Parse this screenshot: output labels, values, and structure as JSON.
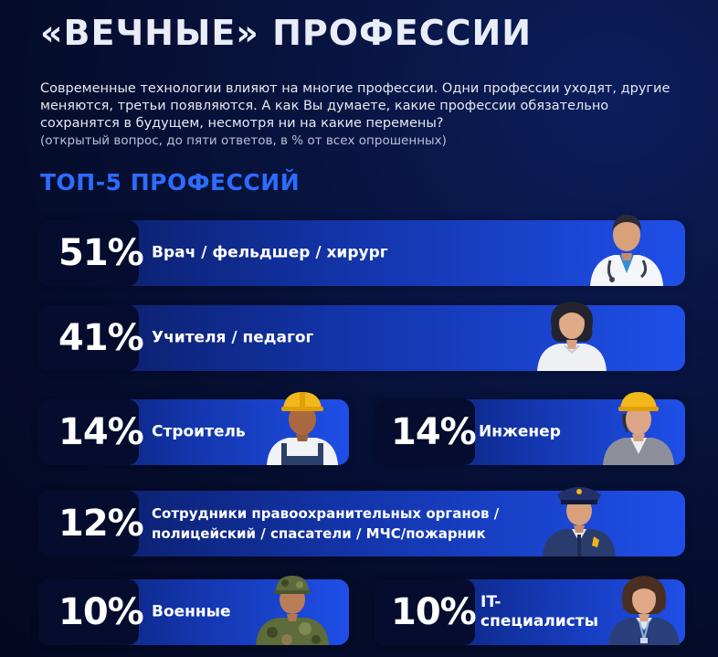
{
  "title": "«ВЕЧНЫЕ» ПРОФЕССИИ",
  "intro": "Современные технологии влияют на многие профессии. Одни профессии уходят, другие меняются, третьи появляются. А как Вы думаете, какие профессии обязательно сохранятся в будущем, несмотря ни на какие перемены?",
  "note": "(открытый вопрос, до пяти ответов, в % от всех опрошенных)",
  "subtitle": "ТОП-5 ПРОФЕССИЙ",
  "professions": [
    {
      "percent": "51%",
      "value": 51,
      "label": "Врач / фельдшер / хирург",
      "icon": "doctor-icon"
    },
    {
      "percent": "41%",
      "value": 41,
      "label": "Учителя / педагог",
      "icon": "teacher-icon"
    },
    {
      "percent": "14%",
      "value": 14,
      "label": "Строитель",
      "icon": "builder-icon"
    },
    {
      "percent": "14%",
      "value": 14,
      "label": "Инженер",
      "icon": "engineer-icon"
    },
    {
      "percent": "12%",
      "value": 12,
      "label_line1": "Сотрудники правоохранительных органов /",
      "label_line2": "полицейский / спасатели / МЧС/пожарник",
      "icon": "police-icon"
    },
    {
      "percent": "10%",
      "value": 10,
      "label": "Военные",
      "icon": "soldier-icon"
    },
    {
      "percent": "10%",
      "value": 10,
      "label_line1": "IT-",
      "label_line2": "специалисты",
      "icon": "it-specialist-icon"
    }
  ]
}
